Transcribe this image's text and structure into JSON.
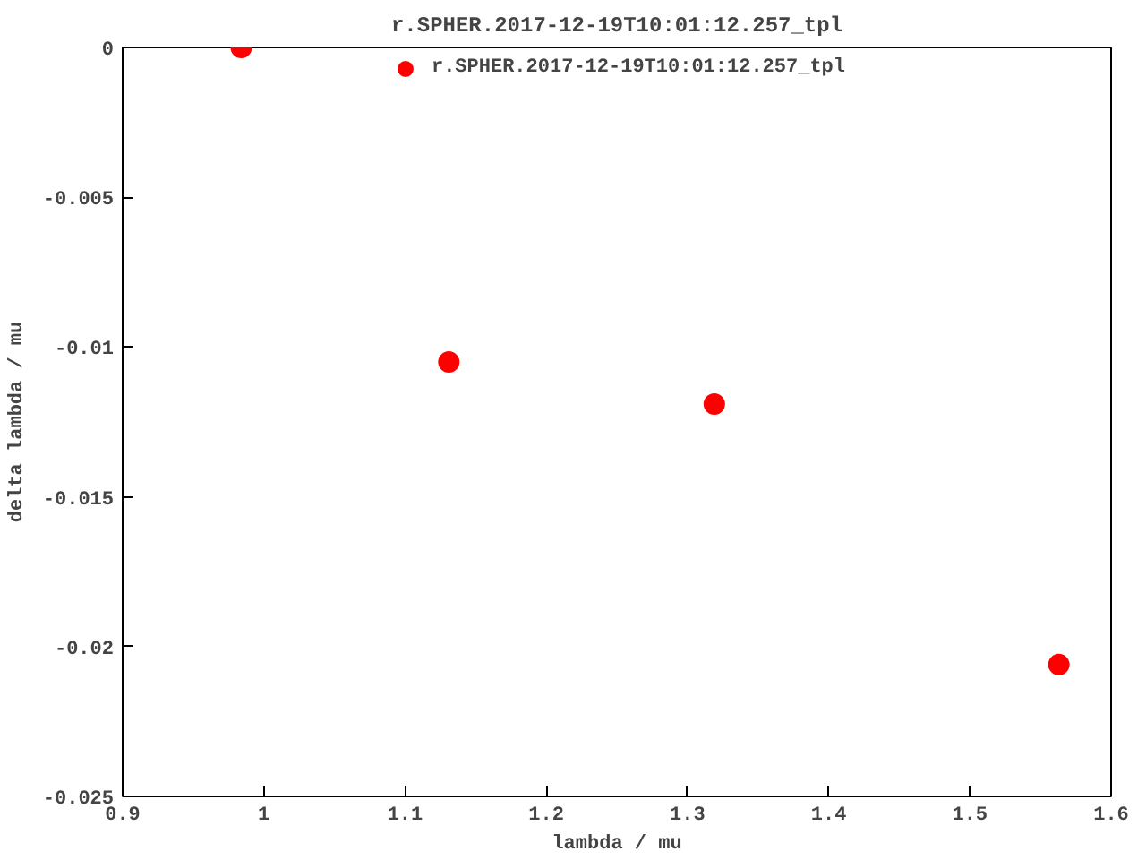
{
  "chart_data": {
    "type": "scatter",
    "title": "r.SPHER.2017-12-19T10:01:12.257_tpl",
    "xlabel": "lambda / mu",
    "ylabel": "delta lambda / mu",
    "x": [
      0.984,
      1.131,
      1.319,
      1.563
    ],
    "series": [
      {
        "name": "r.SPHER.2017-12-19T10:01:12.257_tpl",
        "color": "#ff0000",
        "values": [
          0,
          -0.0105,
          -0.0119,
          -0.0206
        ]
      }
    ],
    "xlim": [
      0.9,
      1.6
    ],
    "ylim": [
      -0.025,
      0
    ],
    "xticks": [
      0.9,
      1,
      1.1,
      1.2,
      1.3,
      1.4,
      1.5,
      1.6
    ],
    "yticks": [
      -0.025,
      -0.02,
      -0.015,
      -0.01,
      -0.005,
      0
    ],
    "marker": "circle",
    "grid": false,
    "legend": "top"
  }
}
